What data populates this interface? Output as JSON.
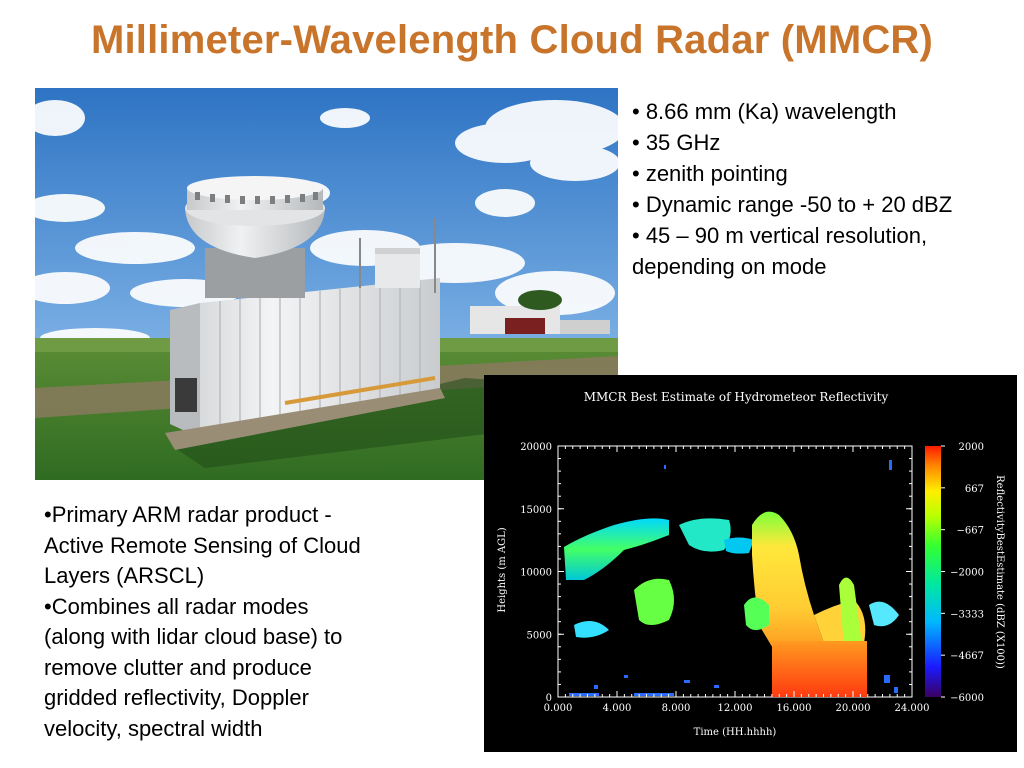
{
  "slide": {
    "title": "Millimeter-Wavelength Cloud Radar (MMCR)"
  },
  "right_bullets": [
    "• 8.66 mm (Ka) wavelength",
    "• 35 GHz",
    "• zenith pointing",
    "• Dynamic range -50 to + 20 dBZ",
    "• 45 – 90 m vertical resolution,",
    "depending on mode"
  ],
  "left_bullets": [
    "•Primary ARM radar product -",
    "Active Remote Sensing of Cloud",
    "Layers (ARSCL)",
    "•Combines all radar modes",
    "(along with lidar cloud base) to",
    "remove clutter and produce",
    "gridded reflectivity, Doppler",
    "velocity, spectral width"
  ],
  "colors": {
    "title": "#c8742b",
    "sky": "#4a8fd6",
    "grass": "#3d7a2a"
  },
  "chart_data": {
    "type": "heatmap",
    "title": "MMCR Best Estimate of Hydrometeor Reflectivity",
    "xlabel": "Time (HH.hhhh)",
    "ylabel": "Heights (m AGL)",
    "xlim": [
      0,
      24
    ],
    "ylim": [
      0,
      20000
    ],
    "x_ticks": [
      "0.000",
      "4.000",
      "8.000",
      "12.000",
      "16.000",
      "20.000",
      "24.000"
    ],
    "x_tick_values": [
      0,
      4,
      8,
      12,
      16,
      20,
      24
    ],
    "y_ticks": [
      "0",
      "5000",
      "10000",
      "15000",
      "20000"
    ],
    "y_tick_values": [
      0,
      5000,
      10000,
      15000,
      20000
    ],
    "colorbar_label": "ReflectivityBestEstimate (dBZ (X100))",
    "colorbar_ticks": [
      "2000",
      "667",
      "−667",
      "−2000",
      "−3333",
      "−4667",
      "−6000"
    ],
    "colorbar_range": [
      -6000,
      2000
    ]
  }
}
